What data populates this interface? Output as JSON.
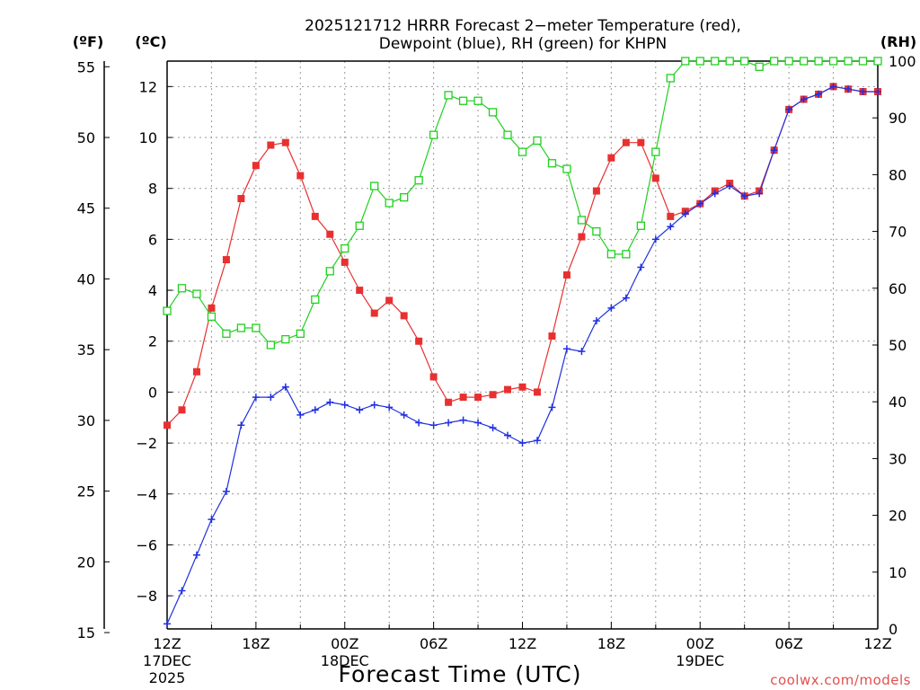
{
  "chart_data": {
    "type": "line",
    "title_line1": "2025121712 HRRR Forecast 2−meter Temperature (red),",
    "title_line2": "Dewpoint (blue), RH (green) for KHPN",
    "unit_f": "(ºF)",
    "unit_c": "(ºC)",
    "unit_rh": "(RH)",
    "xlabel": "Forecast Time (UTC)",
    "credit": "coolwx.com/models",
    "forecast_hours": [
      0,
      1,
      2,
      3,
      4,
      5,
      6,
      7,
      8,
      9,
      10,
      11,
      12,
      13,
      14,
      15,
      16,
      17,
      18,
      19,
      20,
      21,
      22,
      23,
      24,
      25,
      26,
      27,
      28,
      29,
      30,
      31,
      32,
      33,
      34,
      35,
      36,
      37,
      38,
      39,
      40,
      41,
      42,
      43,
      44,
      45,
      46,
      47,
      48
    ],
    "x_ticks": [
      {
        "hour": 0,
        "lines": [
          "12Z",
          "17DEC",
          "2025"
        ]
      },
      {
        "hour": 6,
        "lines": [
          "18Z"
        ]
      },
      {
        "hour": 12,
        "lines": [
          "00Z",
          "18DEC"
        ]
      },
      {
        "hour": 18,
        "lines": [
          "06Z"
        ]
      },
      {
        "hour": 24,
        "lines": [
          "12Z"
        ]
      },
      {
        "hour": 30,
        "lines": [
          "18Z"
        ]
      },
      {
        "hour": 36,
        "lines": [
          "00Z",
          "19DEC"
        ]
      },
      {
        "hour": 42,
        "lines": [
          "06Z"
        ]
      },
      {
        "hour": 48,
        "lines": [
          "12Z"
        ]
      }
    ],
    "xlim": [
      0,
      48
    ],
    "ylim_c": [
      -9.3,
      13.0
    ],
    "ylim_rh": [
      0,
      100
    ],
    "c_ticks": [
      -8,
      -6,
      -4,
      -2,
      0,
      2,
      4,
      6,
      8,
      10,
      12
    ],
    "f_ticks": [
      15,
      20,
      25,
      30,
      35,
      40,
      45,
      50,
      55
    ],
    "rh_ticks": [
      0,
      10,
      20,
      30,
      40,
      50,
      60,
      70,
      80,
      90,
      100
    ],
    "grid": true,
    "series": [
      {
        "name": "Temperature",
        "color": "#e83030",
        "marker": "filled-square",
        "values": [
          -1.3,
          -0.7,
          0.8,
          3.3,
          5.2,
          7.6,
          8.9,
          9.7,
          9.8,
          8.5,
          6.9,
          6.2,
          5.1,
          4.0,
          3.1,
          3.6,
          3.0,
          2.0,
          0.6,
          -0.4,
          -0.2,
          -0.2,
          -0.1,
          0.1,
          0.2,
          0.0,
          2.2,
          4.6,
          6.1,
          7.9,
          9.2,
          9.8,
          9.8,
          8.4,
          6.9,
          7.1,
          7.4,
          7.9,
          8.2,
          7.7,
          7.9,
          9.5,
          11.1,
          11.5,
          11.7,
          12.0,
          11.9,
          11.8,
          11.8
        ]
      },
      {
        "name": "Dewpoint",
        "color": "#2030e0",
        "marker": "plus",
        "values": [
          -9.1,
          -7.8,
          -6.4,
          -5.0,
          -3.9,
          -1.3,
          -0.2,
          -0.2,
          0.2,
          -0.9,
          -0.7,
          -0.4,
          -0.5,
          -0.7,
          -0.5,
          -0.6,
          -0.9,
          -1.2,
          -1.3,
          -1.2,
          -1.1,
          -1.2,
          -1.4,
          -1.7,
          -2.0,
          -1.9,
          -0.6,
          1.7,
          1.6,
          2.8,
          3.3,
          3.7,
          4.9,
          6.0,
          6.5,
          7.0,
          7.4,
          7.8,
          8.1,
          7.7,
          7.8,
          9.5,
          11.1,
          11.5,
          11.7,
          12.0,
          11.9,
          11.8,
          11.8
        ]
      },
      {
        "name": "RH",
        "color": "#20d020",
        "marker": "open-square",
        "values": [
          56,
          60,
          59,
          55,
          52,
          53,
          53,
          50,
          51,
          52,
          58,
          63,
          67,
          71,
          78,
          75,
          76,
          79,
          87,
          94,
          93,
          93,
          91,
          87,
          84,
          86,
          82,
          81,
          72,
          70,
          66,
          66,
          71,
          84,
          97,
          100,
          100,
          100,
          100,
          100,
          99,
          100,
          100,
          100,
          100,
          100,
          100,
          100,
          100
        ]
      }
    ]
  }
}
